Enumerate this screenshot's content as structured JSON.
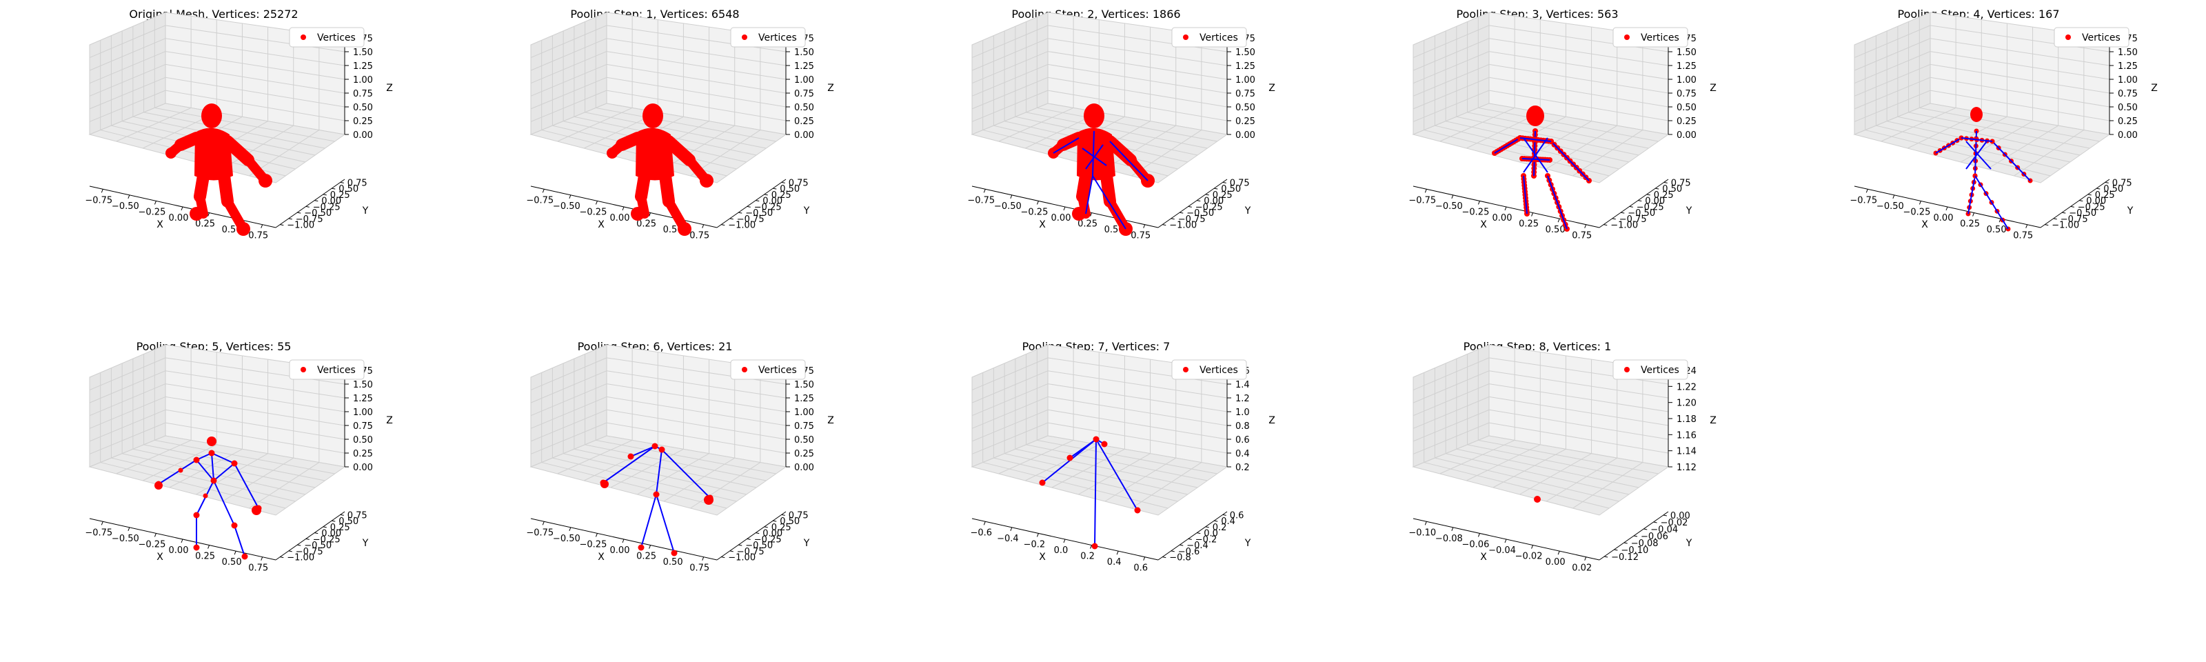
{
  "figure": {
    "panel_tick_labels_note": ""
  },
  "legend_label": "Vertices",
  "axis_labels": {
    "x": "X",
    "y": "Y",
    "z": "Z"
  },
  "colors": {
    "vertices": "#ff0000",
    "edges": "#0000ff",
    "pane": "#f2f2f2",
    "pane_side": "#e6e6e6",
    "grid": "#d0d0d0"
  },
  "chart_data": [
    {
      "type": "scatter",
      "title": "Original Mesh, Vertices: 25272",
      "vertex_count": 25272,
      "density": "dense-body",
      "xticks": [
        "−0.75",
        "−0.50",
        "−0.25",
        "0.00",
        "0.25",
        "0.50",
        "0.75"
      ],
      "yticks": [
        "0.75",
        "0.50",
        "0.25",
        "0.00",
        "−0.25",
        "−0.50",
        "−0.75",
        "−1.00"
      ],
      "zticks": [
        "0.00",
        "0.25",
        "0.50",
        "0.75",
        "1.00",
        "1.25",
        "1.50",
        "1.75"
      ],
      "legend": [
        "Vertices"
      ]
    },
    {
      "type": "scatter",
      "title": "Pooling Step: 1, Vertices: 6548",
      "vertex_count": 6548,
      "density": "dense-body",
      "xticks": [
        "−0.75",
        "−0.50",
        "−0.25",
        "0.00",
        "0.25",
        "0.50",
        "0.75"
      ],
      "yticks": [
        "0.75",
        "0.50",
        "0.25",
        "0.00",
        "−0.25",
        "−0.50",
        "−0.75",
        "−1.00"
      ],
      "zticks": [
        "0.00",
        "0.25",
        "0.50",
        "0.75",
        "1.00",
        "1.25",
        "1.50",
        "1.75"
      ],
      "legend": [
        "Vertices"
      ]
    },
    {
      "type": "scatter",
      "title": "Pooling Step: 2, Vertices: 1866",
      "vertex_count": 1866,
      "density": "dense-body-edges",
      "xticks": [
        "−0.75",
        "−0.50",
        "−0.25",
        "0.00",
        "0.25",
        "0.50",
        "0.75"
      ],
      "yticks": [
        "0.75",
        "0.50",
        "0.25",
        "0.00",
        "−0.25",
        "−0.50",
        "−0.75",
        "−1.00"
      ],
      "zticks": [
        "0.00",
        "0.25",
        "0.50",
        "0.75",
        "1.00",
        "1.25",
        "1.50",
        "1.75"
      ],
      "legend": [
        "Vertices"
      ]
    },
    {
      "type": "scatter",
      "title": "Pooling Step: 3, Vertices: 563",
      "vertex_count": 563,
      "density": "sparse-body-edges",
      "xticks": [
        "−0.75",
        "−0.50",
        "−0.25",
        "0.00",
        "0.25",
        "0.50",
        "0.75"
      ],
      "yticks": [
        "0.75",
        "0.50",
        "0.25",
        "0.00",
        "−0.25",
        "−0.50",
        "−0.75",
        "−1.00"
      ],
      "zticks": [
        "0.00",
        "0.25",
        "0.50",
        "0.75",
        "1.00",
        "1.25",
        "1.50",
        "1.75"
      ],
      "legend": [
        "Vertices"
      ]
    },
    {
      "type": "scatter",
      "title": "Pooling Step: 4, Vertices: 167",
      "vertex_count": 167,
      "density": "skeleton-dense",
      "xticks": [
        "−0.75",
        "−0.50",
        "−0.25",
        "0.00",
        "0.25",
        "0.50",
        "0.75"
      ],
      "yticks": [
        "0.75",
        "0.50",
        "0.25",
        "0.00",
        "−0.25",
        "−0.50",
        "−0.75",
        "−1.00"
      ],
      "zticks": [
        "0.00",
        "0.25",
        "0.50",
        "0.75",
        "1.00",
        "1.25",
        "1.50",
        "1.75"
      ],
      "legend": [
        "Vertices"
      ]
    },
    {
      "type": "scatter",
      "title": "Pooling Step: 5, Vertices: 55",
      "vertex_count": 55,
      "density": "skeleton-medium",
      "xticks": [
        "−0.75",
        "−0.50",
        "−0.25",
        "0.00",
        "0.25",
        "0.50",
        "0.75"
      ],
      "yticks": [
        "0.75",
        "0.50",
        "0.25",
        "0.00",
        "−0.25",
        "−0.50",
        "−0.75",
        "−1.00"
      ],
      "zticks": [
        "0.00",
        "0.25",
        "0.50",
        "0.75",
        "1.00",
        "1.25",
        "1.50",
        "1.75"
      ],
      "legend": [
        "Vertices"
      ]
    },
    {
      "type": "scatter",
      "title": "Pooling Step: 6, Vertices: 21",
      "vertex_count": 21,
      "density": "skeleton-sparse",
      "xticks": [
        "−0.75",
        "−0.50",
        "−0.25",
        "0.00",
        "0.25",
        "0.50",
        "0.75"
      ],
      "yticks": [
        "0.75",
        "0.50",
        "0.25",
        "0.00",
        "−0.25",
        "−0.50",
        "−0.75",
        "−1.00"
      ],
      "zticks": [
        "0.00",
        "0.25",
        "0.50",
        "0.75",
        "1.00",
        "1.25",
        "1.50",
        "1.75"
      ],
      "legend": [
        "Vertices"
      ]
    },
    {
      "type": "scatter",
      "title": "Pooling Step: 7, Vertices: 7",
      "vertex_count": 7,
      "density": "star",
      "xticks": [
        "−0.6",
        "−0.4",
        "−0.2",
        "0.0",
        "0.2",
        "0.4",
        "0.6"
      ],
      "yticks": [
        "0.6",
        "0.4",
        "0.2",
        "0.0",
        "−0.2",
        "−0.4",
        "−0.6",
        "−0.8"
      ],
      "zticks": [
        "0.2",
        "0.4",
        "0.6",
        "0.8",
        "1.0",
        "1.2",
        "1.4",
        "1.6"
      ],
      "legend": [
        "Vertices"
      ]
    },
    {
      "type": "scatter",
      "title": "Pooling Step: 8, Vertices: 1",
      "vertex_count": 1,
      "density": "single",
      "xticks": [
        "−0.10",
        "−0.08",
        "−0.06",
        "−0.04",
        "−0.02",
        "0.00",
        "0.02"
      ],
      "yticks": [
        "0.00",
        "−0.02",
        "−0.04",
        "−0.06",
        "−0.08",
        "−0.10",
        "−0.12"
      ],
      "zticks": [
        "1.12",
        "1.14",
        "1.16",
        "1.18",
        "1.20",
        "1.22",
        "1.24"
      ],
      "legend": [
        "Vertices"
      ]
    }
  ]
}
